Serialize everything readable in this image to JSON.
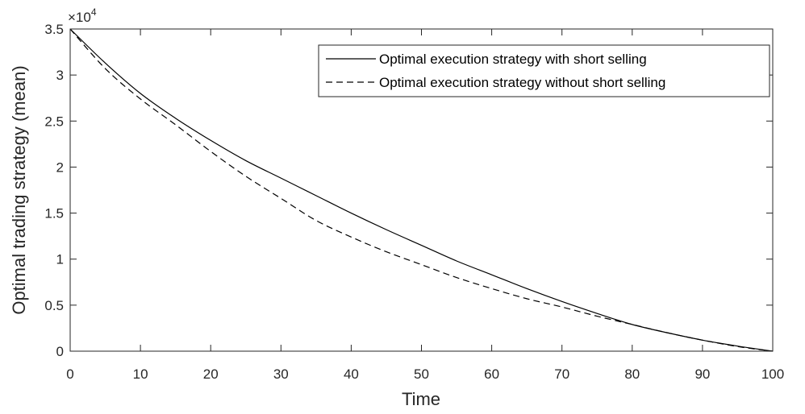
{
  "chart_data": {
    "type": "line",
    "xlabel": "Time",
    "ylabel": "Optimal trading strategy (mean)",
    "xlim": [
      0,
      100
    ],
    "ylim": [
      0,
      35000
    ],
    "xticks": [
      0,
      10,
      20,
      30,
      40,
      50,
      60,
      70,
      80,
      90,
      100
    ],
    "xtick_labels": [
      "0",
      "10",
      "20",
      "30",
      "40",
      "50",
      "60",
      "70",
      "80",
      "90",
      "100"
    ],
    "yticks": [
      0,
      5000,
      10000,
      15000,
      20000,
      25000,
      30000,
      35000
    ],
    "ytick_labels": [
      "0",
      "0.5",
      "1",
      "1.5",
      "2",
      "2.5",
      "3",
      "3.5"
    ],
    "y_exponent_base": "×10",
    "y_exponent_power": "4",
    "grid": false,
    "legend_position": "top-right",
    "x": [
      0,
      5,
      10,
      15,
      20,
      25,
      30,
      35,
      40,
      45,
      50,
      55,
      60,
      65,
      70,
      75,
      80,
      85,
      90,
      95,
      100
    ],
    "series": [
      {
        "name": "Optimal execution strategy with short selling",
        "style": "solid",
        "color": "#000000",
        "values": [
          35000,
          31300,
          28000,
          25300,
          22900,
          20700,
          18800,
          16900,
          15000,
          13200,
          11500,
          9800,
          8300,
          6800,
          5400,
          4100,
          2900,
          2000,
          1200,
          550,
          0
        ]
      },
      {
        "name": "Optimal execution strategy without short selling",
        "style": "dashed",
        "color": "#000000",
        "values": [
          35000,
          30700,
          27400,
          24600,
          21700,
          19000,
          16600,
          14200,
          12400,
          10800,
          9400,
          8000,
          6800,
          5700,
          4800,
          3800,
          2900,
          2000,
          1200,
          500,
          0
        ]
      }
    ]
  }
}
